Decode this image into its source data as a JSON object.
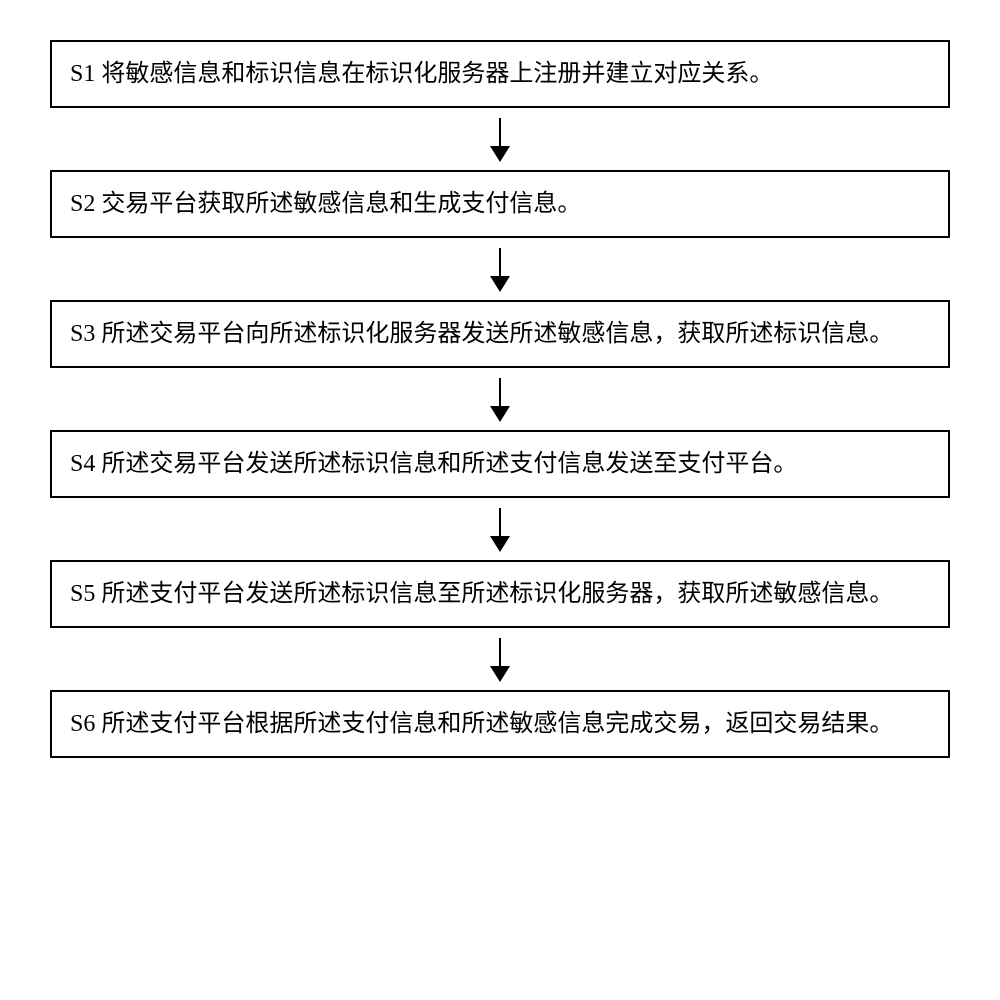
{
  "flowchart": {
    "type": "flowchart",
    "background_color": "#ffffff",
    "border_color": "#000000",
    "border_width": 2,
    "text_color": "#000000",
    "font_size": 24,
    "font_family": "SimSun",
    "arrow_color": "#000000",
    "box_padding": "14px 18px",
    "steps": [
      {
        "label": "S1",
        "text": "将敏感信息和标识信息在标识化服务器上注册并建立对应关系。"
      },
      {
        "label": "S2",
        "text": "交易平台获取所述敏感信息和生成支付信息。"
      },
      {
        "label": "S3",
        "text": "所述交易平台向所述标识化服务器发送所述敏感信息，获取所述标识信息。"
      },
      {
        "label": "S4",
        "text": "所述交易平台发送所述标识信息和所述支付信息发送至支付平台。"
      },
      {
        "label": "S5",
        "text": "所述支付平台发送所述标识信息至所述标识化服务器，获取所述敏感信息。"
      },
      {
        "label": "S6",
        "text": "所述支付平台根据所述支付信息和所述敏感信息完成交易，返回交易结果。"
      }
    ]
  }
}
